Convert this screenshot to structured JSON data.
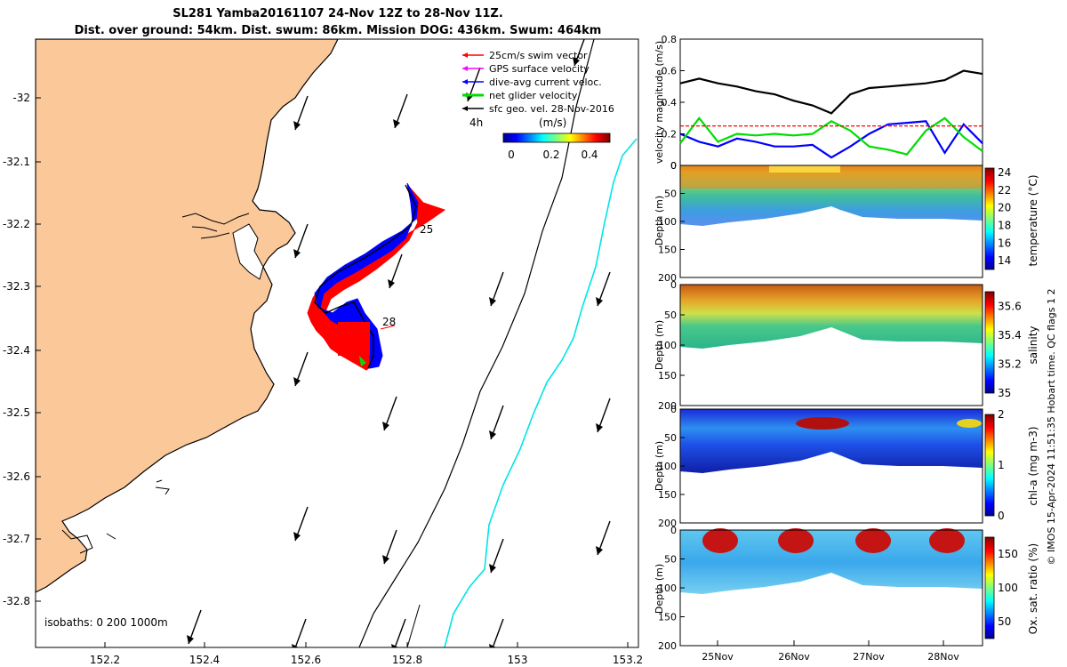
{
  "title": {
    "line1": "SL281 Yamba20161107 24-Nov 12Z to 28-Nov 11Z.",
    "line2": "Dist. over ground: 54km. Dist. swum: 86km. Mission DOG: 436km. Swum: 464km"
  },
  "map": {
    "legend": [
      {
        "label": "25cm/s swim vector",
        "color": "#ff0000"
      },
      {
        "label": "GPS surface velocity",
        "color": "#ff00ff"
      },
      {
        "label": "dive-avg current veloc.",
        "color": "#0000ff"
      },
      {
        "label": "net glider velocity",
        "color": "#00dd00"
      },
      {
        "label": "sfc geo. vel. 28-Nov-2016",
        "color": "#000000"
      }
    ],
    "time_tag": "4h",
    "colorbar": {
      "label": "(m/s)",
      "ticks": [
        "0",
        "0.2",
        "0.4"
      ]
    },
    "labels_on_track": [
      "25",
      "28"
    ],
    "isobath_text": "isobaths: 0   200  1000m",
    "x_ticks": [
      "152.2",
      "152.4",
      "152.6",
      "152.8",
      "153",
      "153.2"
    ],
    "y_ticks": [
      "-32",
      "-32.1",
      "-32.2",
      "-32.3",
      "-32.4",
      "-32.5",
      "-32.6",
      "-32.7",
      "-32.8"
    ],
    "colors": {
      "land": "#fbc89a",
      "current": "#00e5e5",
      "track": "#0000ff"
    }
  },
  "side_footer": "© IMOS 15-Apr-2024 11:51:35 Hobart time. QC flags 1  2",
  "chart_data": [
    {
      "type": "line",
      "ylabel": "velocity magnitude (m/s)",
      "ylim": [
        0,
        0.8
      ],
      "y_ticks": [
        "0",
        "0.2",
        "0.4",
        "0.6",
        "0.8"
      ],
      "x": [
        0,
        0.25,
        0.5,
        0.75,
        1.0,
        1.25,
        1.5,
        1.75,
        2.0,
        2.25,
        2.5,
        2.75,
        3.0,
        3.25,
        3.5,
        3.75,
        4.0
      ],
      "series": [
        {
          "color": "#000000",
          "values": [
            0.52,
            0.55,
            0.52,
            0.5,
            0.47,
            0.45,
            0.41,
            0.38,
            0.33,
            0.45,
            0.49,
            0.5,
            0.51,
            0.52,
            0.54,
            0.6,
            0.58
          ]
        },
        {
          "color": "#0000ff",
          "values": [
            0.2,
            0.15,
            0.12,
            0.17,
            0.15,
            0.12,
            0.12,
            0.13,
            0.05,
            0.12,
            0.2,
            0.26,
            0.27,
            0.28,
            0.08,
            0.26,
            0.14
          ]
        },
        {
          "color": "#00dd00",
          "values": [
            0.14,
            0.3,
            0.15,
            0.2,
            0.19,
            0.2,
            0.19,
            0.2,
            0.28,
            0.22,
            0.12,
            0.1,
            0.07,
            0.22,
            0.3,
            0.18,
            0.09
          ]
        },
        {
          "color": "#ff0000",
          "values": [
            0.25,
            0.25,
            0.25,
            0.25,
            0.25,
            0.25,
            0.25,
            0.25,
            0.25,
            0.25,
            0.25,
            0.25,
            0.25,
            0.25,
            0.25,
            0.25,
            0.25
          ]
        }
      ]
    },
    {
      "type": "heatmap",
      "ylabel": "Depth (m)",
      "colorbar_label": "temperature (°C)",
      "y_ticks": [
        "0",
        "50",
        "100",
        "150",
        "200"
      ],
      "cb_ticks": [
        "14",
        "16",
        "18",
        "20",
        "22",
        "24"
      ],
      "cb_range": [
        13,
        24.5
      ]
    },
    {
      "type": "heatmap",
      "ylabel": "Depth (m)",
      "colorbar_label": "salinity",
      "y_ticks": [
        "0",
        "50",
        "100",
        "150",
        "200"
      ],
      "cb_ticks": [
        "35",
        "35.2",
        "35.4",
        "35.6"
      ],
      "cb_range": [
        35,
        35.7
      ]
    },
    {
      "type": "heatmap",
      "ylabel": "Depth (m)",
      "colorbar_label": "chl-a (mg m-3)",
      "y_ticks": [
        "0",
        "50",
        "100",
        "150",
        "200"
      ],
      "cb_ticks": [
        "0",
        "1",
        "2"
      ],
      "cb_range": [
        0,
        2
      ]
    },
    {
      "type": "heatmap",
      "ylabel": "Depth (m)",
      "colorbar_label": "Ox. sat. ratio (%)",
      "y_ticks": [
        "0",
        "50",
        "100",
        "150",
        "200"
      ],
      "cb_ticks": [
        "50",
        "100",
        "150"
      ],
      "cb_range": [
        25,
        175
      ]
    }
  ],
  "x_date_ticks": [
    "25Nov",
    "26Nov",
    "27Nov",
    "28Nov"
  ]
}
